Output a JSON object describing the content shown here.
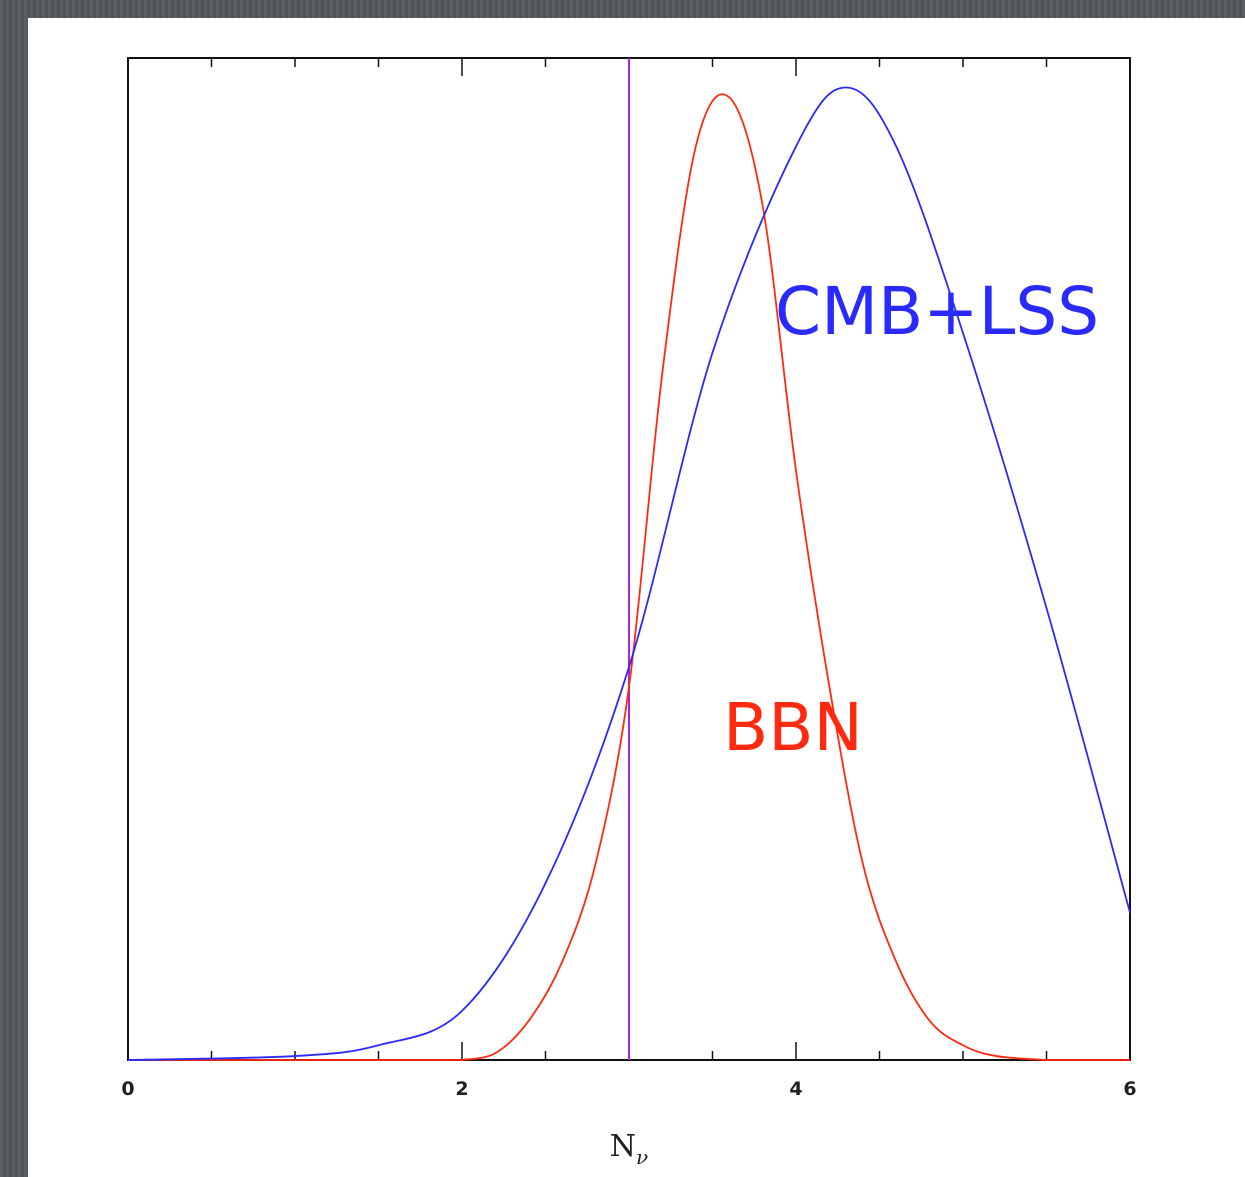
{
  "chart_data": {
    "type": "line",
    "title": "",
    "xlabel": "N",
    "xlabel_subscript": "ν",
    "ylabel": "",
    "xlim": [
      0,
      6
    ],
    "ylim": [
      0,
      1.02
    ],
    "x_ticks": [
      "0",
      "2",
      "4",
      "6"
    ],
    "grid": false,
    "reference_line": {
      "x": 3.0,
      "color": "#b020e0"
    },
    "series": [
      {
        "name": "BBN",
        "color": "#ff2a10",
        "x": [
          2.0,
          2.2,
          2.4,
          2.6,
          2.8,
          3.0,
          3.2,
          3.4,
          3.6,
          3.8,
          4.0,
          4.2,
          4.4,
          4.6,
          4.8,
          5.0,
          5.2,
          5.5
        ],
        "y": [
          0.0,
          0.007,
          0.04,
          0.1,
          0.2,
          0.38,
          0.7,
          0.93,
          0.98,
          0.87,
          0.6,
          0.38,
          0.2,
          0.1,
          0.04,
          0.015,
          0.004,
          0.0
        ]
      },
      {
        "name": "CMB+LSS",
        "color": "#2a2aff",
        "x": [
          0.0,
          1.0,
          1.5,
          2.0,
          2.5,
          3.0,
          3.5,
          4.0,
          4.3,
          4.6,
          5.0,
          5.5,
          6.0
        ],
        "y": [
          0.0,
          0.004,
          0.015,
          0.05,
          0.18,
          0.4,
          0.72,
          0.93,
          0.99,
          0.93,
          0.74,
          0.46,
          0.15
        ]
      }
    ]
  },
  "labels": {
    "cmb": "CMB+LSS",
    "bbn": "BBN"
  }
}
